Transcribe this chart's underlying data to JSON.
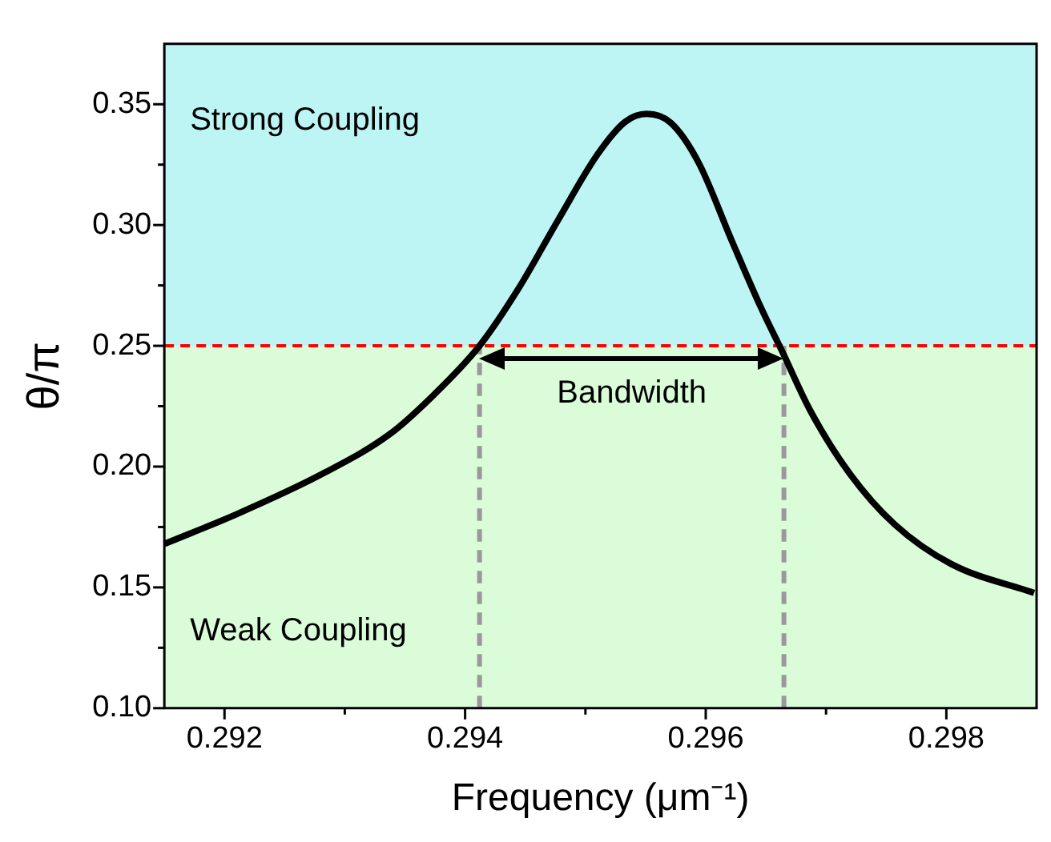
{
  "chart_data": {
    "type": "line",
    "xlabel": "Frequency (μm⁻¹)",
    "ylabel": "θ/π",
    "x": [
      0.2915,
      0.29211,
      0.29281,
      0.29337,
      0.29374,
      0.29412,
      0.29444,
      0.29477,
      0.2951,
      0.29533,
      0.29551,
      0.29571,
      0.29594,
      0.29622,
      0.29645,
      0.29664,
      0.29687,
      0.2972,
      0.29757,
      0.29804,
      0.29873
    ],
    "series": [
      {
        "color": "#000000",
        "values": [
          0.168,
          0.1805,
          0.1969,
          0.2133,
          0.2297,
          0.25,
          0.2734,
          0.3018,
          0.3292,
          0.3427,
          0.346,
          0.3423,
          0.3259,
          0.2931,
          0.2668,
          0.2472,
          0.2231,
          0.1969,
          0.1761,
          0.1597,
          0.1477
        ]
      }
    ],
    "xlim": [
      0.2915,
      0.29875
    ],
    "ylim": [
      0.1,
      0.375
    ],
    "xticks": [
      {
        "value": 0.292,
        "label": "0.292"
      },
      {
        "value": 0.293,
        "label": null
      },
      {
        "value": 0.294,
        "label": "0.294"
      },
      {
        "value": 0.295,
        "label": null
      },
      {
        "value": 0.296,
        "label": "0.296"
      },
      {
        "value": 0.297,
        "label": null
      },
      {
        "value": 0.298,
        "label": "0.298"
      }
    ],
    "yticks": [
      {
        "value": 0.1,
        "label": "0.10"
      },
      {
        "value": 0.125,
        "label": null
      },
      0.15,
      {
        "value": 0.175,
        "label": null
      },
      {
        "value": 0.2,
        "label": "0.20"
      },
      {
        "value": 0.225,
        "label": null
      },
      0.25,
      {
        "value": 0.275,
        "label": null
      },
      {
        "value": 0.3,
        "label": "0.30"
      },
      {
        "value": 0.325,
        "label": null
      },
      0.35
    ],
    "bands": [
      {
        "axis": "y",
        "from": 0.25,
        "to": 0.375,
        "label": "Strong Coupling",
        "color": "#bdf5f5"
      },
      {
        "axis": "y",
        "from": 0.1,
        "to": 0.25,
        "label": "Weak Coupling",
        "color": "#dafcd9"
      }
    ],
    "ref_lines": [
      {
        "axis": "y",
        "value": 0.25,
        "color": "#ff0000",
        "line_style": "dashed"
      },
      {
        "axis": "x",
        "value": 0.29412,
        "color": "#999999",
        "line_style": "dashed"
      },
      {
        "axis": "x",
        "value": 0.29665,
        "color": "#999999",
        "line_style": "dashed"
      }
    ],
    "annotations": [
      "Bandwidth"
    ],
    "legend": false,
    "marker": "none",
    "line_style": "solid"
  }
}
